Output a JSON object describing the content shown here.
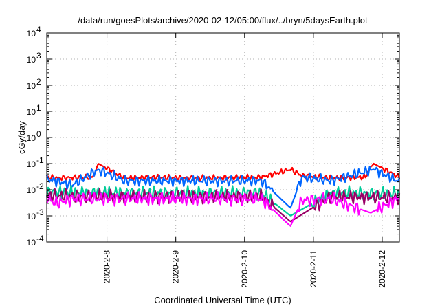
{
  "chart_data": {
    "type": "line",
    "title": "/data/run/goesPlots/archive/2020-02-12/05:00/flux/../bryn/5daysEarth.plot",
    "xlabel": "Coordinated Universal Time (UTC)",
    "ylabel": "cGy/day",
    "yscale": "log",
    "ylim": [
      0.0001,
      10000
    ],
    "yticks": [
      {
        "value": 10000,
        "base": "10",
        "exp": "4"
      },
      {
        "value": 1000,
        "base": "10",
        "exp": "3"
      },
      {
        "value": 100,
        "base": "10",
        "exp": "2"
      },
      {
        "value": 10,
        "base": "10",
        "exp": "1"
      },
      {
        "value": 1,
        "base": "10",
        "exp": "0"
      },
      {
        "value": 0.1,
        "base": "10",
        "exp": "-1"
      },
      {
        "value": 0.01,
        "base": "10",
        "exp": "-2"
      },
      {
        "value": 0.001,
        "base": "10",
        "exp": "-3"
      },
      {
        "value": 0.0001,
        "base": "10",
        "exp": "-4"
      }
    ],
    "xlim": [
      "2020-02-07 03:00",
      "2020-02-12 06:00"
    ],
    "xticks": [
      {
        "value": "2020-02-08 00:00",
        "label": "2020-2-8"
      },
      {
        "value": "2020-02-09 00:00",
        "label": "2020-2-9"
      },
      {
        "value": "2020-02-10 00:00",
        "label": "2020-2-10"
      },
      {
        "value": "2020-02-11 00:00",
        "label": "2020-2-11"
      },
      {
        "value": "2020-02-12 00:00",
        "label": "2020-2-12"
      }
    ],
    "grid": true,
    "legend": "none",
    "series": [
      {
        "color": "#ff0000",
        "baseline": 0.028,
        "values": [
          {
            "x": "2020-02-07 03:00",
            "y": 0.03
          },
          {
            "x": "2020-02-07 06:00",
            "y": 0.028
          },
          {
            "x": "2020-02-07 12:00",
            "y": 0.029
          },
          {
            "x": "2020-02-07 19:00",
            "y": 0.03
          },
          {
            "x": "2020-02-07 21:00",
            "y": 0.1
          },
          {
            "x": "2020-02-08 06:00",
            "y": 0.028
          },
          {
            "x": "2020-02-08 18:00",
            "y": 0.03
          },
          {
            "x": "2020-02-09 06:00",
            "y": 0.028
          },
          {
            "x": "2020-02-09 18:00",
            "y": 0.029
          },
          {
            "x": "2020-02-10 06:00",
            "y": 0.03
          },
          {
            "x": "2020-02-10 16:00",
            "y": 0.06
          },
          {
            "x": "2020-02-10 20:00",
            "y": 0.035
          },
          {
            "x": "2020-02-11 06:00",
            "y": 0.028
          },
          {
            "x": "2020-02-11 18:00",
            "y": 0.03
          },
          {
            "x": "2020-02-11 21:00",
            "y": 0.1
          },
          {
            "x": "2020-02-12 06:00",
            "y": 0.03
          }
        ]
      },
      {
        "color": "#0066ff",
        "baseline": 0.022,
        "values": [
          {
            "x": "2020-02-07 03:00",
            "y": 0.025
          },
          {
            "x": "2020-02-07 06:00",
            "y": 0.022
          },
          {
            "x": "2020-02-07 12:00",
            "y": 0.015
          },
          {
            "x": "2020-02-07 21:00",
            "y": 0.06
          },
          {
            "x": "2020-02-08 06:00",
            "y": 0.022
          },
          {
            "x": "2020-02-09 06:00",
            "y": 0.022
          },
          {
            "x": "2020-02-10 06:00",
            "y": 0.022
          },
          {
            "x": "2020-02-10 16:00",
            "y": 0.002
          },
          {
            "x": "2020-02-10 20:00",
            "y": 0.03
          },
          {
            "x": "2020-02-11 06:00",
            "y": 0.022
          },
          {
            "x": "2020-02-11 21:00",
            "y": 0.06
          },
          {
            "x": "2020-02-12 06:00",
            "y": 0.02
          }
        ]
      },
      {
        "color": "#00cc99",
        "baseline": 0.0075,
        "values": [
          {
            "x": "2020-02-07 03:00",
            "y": 0.008
          },
          {
            "x": "2020-02-08 06:00",
            "y": 0.0075
          },
          {
            "x": "2020-02-09 06:00",
            "y": 0.0075
          },
          {
            "x": "2020-02-10 06:00",
            "y": 0.0075
          },
          {
            "x": "2020-02-10 16:00",
            "y": 0.001
          },
          {
            "x": "2020-02-11 06:00",
            "y": 0.0075
          },
          {
            "x": "2020-02-12 06:00",
            "y": 0.007
          }
        ]
      },
      {
        "color": "#990066",
        "baseline": 0.0055,
        "values": [
          {
            "x": "2020-02-07 03:00",
            "y": 0.006
          },
          {
            "x": "2020-02-08 06:00",
            "y": 0.0055
          },
          {
            "x": "2020-02-09 06:00",
            "y": 0.0055
          },
          {
            "x": "2020-02-10 06:00",
            "y": 0.0055
          },
          {
            "x": "2020-02-10 16:00",
            "y": 0.0006
          },
          {
            "x": "2020-02-11 06:00",
            "y": 0.0055
          },
          {
            "x": "2020-02-12 06:00",
            "y": 0.005
          }
        ]
      },
      {
        "color": "#ff00ff",
        "baseline": 0.0045,
        "values": [
          {
            "x": "2020-02-07 03:00",
            "y": 0.005
          },
          {
            "x": "2020-02-07 06:00",
            "y": 0.003
          },
          {
            "x": "2020-02-07 12:00",
            "y": 0.0045
          },
          {
            "x": "2020-02-08 06:00",
            "y": 0.0045
          },
          {
            "x": "2020-02-09 06:00",
            "y": 0.0045
          },
          {
            "x": "2020-02-10 06:00",
            "y": 0.0045
          },
          {
            "x": "2020-02-10 16:00",
            "y": 0.0004
          },
          {
            "x": "2020-02-10 20:00",
            "y": 0.004
          },
          {
            "x": "2020-02-11 06:00",
            "y": 0.0045
          },
          {
            "x": "2020-02-11 20:00",
            "y": 0.0013
          },
          {
            "x": "2020-02-12 06:00",
            "y": 0.005
          }
        ]
      }
    ]
  }
}
